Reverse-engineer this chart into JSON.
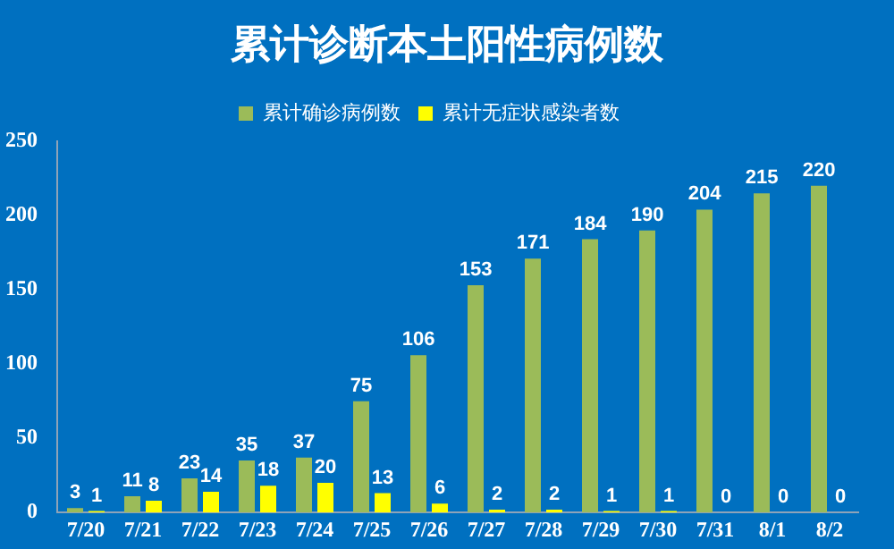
{
  "chart_data": {
    "type": "bar",
    "title": "累计诊断本土阳性病例数",
    "categories": [
      "7/20",
      "7/21",
      "7/22",
      "7/23",
      "7/24",
      "7/25",
      "7/26",
      "7/27",
      "7/28",
      "7/29",
      "7/30",
      "7/31",
      "8/1",
      "8/2"
    ],
    "series": [
      {
        "name": "累计确诊病例数",
        "color": "#9bbb59",
        "values": [
          3,
          11,
          23,
          35,
          37,
          75,
          106,
          153,
          171,
          184,
          190,
          204,
          215,
          220
        ]
      },
      {
        "name": "累计无症状感染者数",
        "color": "#ffff00",
        "values": [
          1,
          8,
          14,
          18,
          20,
          13,
          6,
          2,
          2,
          1,
          1,
          0,
          0,
          0
        ]
      }
    ],
    "ylim": [
      0,
      250
    ],
    "yticks": [
      0,
      50,
      100,
      150,
      200,
      250
    ],
    "grid": false,
    "legend": "top",
    "data_labels": true
  }
}
